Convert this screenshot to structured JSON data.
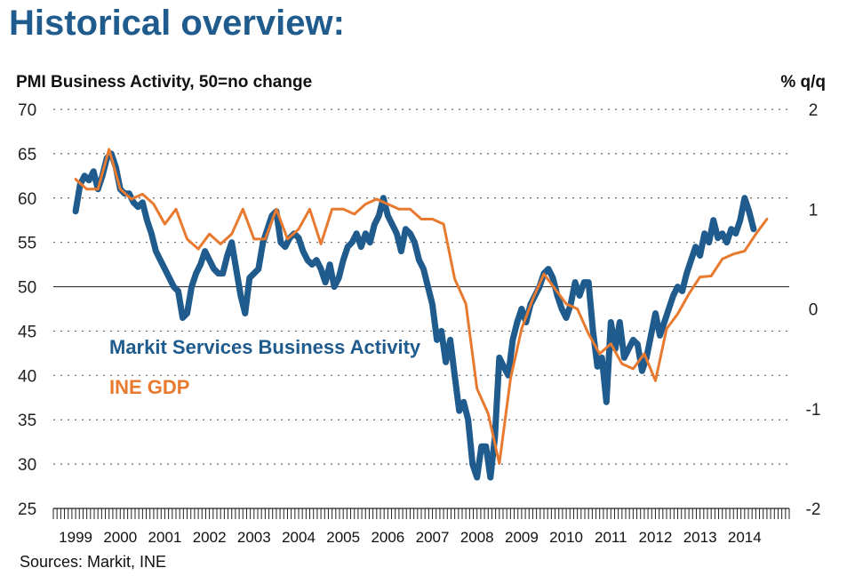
{
  "title": "Historical overview:",
  "source_text": "Sources: Markit, INE",
  "chart_data": {
    "type": "line",
    "ylabel_left": "PMI Business Activity, 50=no change",
    "ylabel_right": "% q/q",
    "ylim_left": [
      25,
      70
    ],
    "yticks_left": [
      25,
      30,
      35,
      40,
      45,
      50,
      55,
      60,
      65,
      70
    ],
    "ylim_right": [
      -2,
      2
    ],
    "yticks_right": [
      -2,
      -1,
      0,
      1,
      2
    ],
    "reference_line": 50,
    "grid": "dotted horizontal",
    "xlim": [
      1999.0,
      2015.5
    ],
    "x_tick_labels": [
      "1999",
      "2000",
      "2001",
      "2002",
      "2003",
      "2004",
      "2005",
      "2006",
      "2007",
      "2008",
      "2009",
      "2010",
      "2011",
      "2012",
      "2013",
      "2014"
    ],
    "annotations": [
      {
        "text": "Markit Services Business Activity",
        "color": "#1f5b8c"
      },
      {
        "text": "INE GDP",
        "color": "#e87a30"
      }
    ],
    "series": [
      {
        "name": "Markit Services Business Activity",
        "axis": "left",
        "color": "#1f5b8c",
        "points": [
          [
            1999.5,
            58.5
          ],
          [
            1999.6,
            61.5
          ],
          [
            1999.7,
            62.5
          ],
          [
            1999.8,
            62
          ],
          [
            1999.9,
            63
          ],
          [
            2000.0,
            61
          ],
          [
            2000.1,
            62.5
          ],
          [
            2000.2,
            64.5
          ],
          [
            2000.3,
            65
          ],
          [
            2000.4,
            63.5
          ],
          [
            2000.5,
            61
          ],
          [
            2000.6,
            60.5
          ],
          [
            2000.7,
            60.5
          ],
          [
            2000.8,
            59.5
          ],
          [
            2000.9,
            59
          ],
          [
            2001.0,
            59.5
          ],
          [
            2001.1,
            57.5
          ],
          [
            2001.2,
            56
          ],
          [
            2001.3,
            54
          ],
          [
            2001.4,
            53
          ],
          [
            2001.5,
            52
          ],
          [
            2001.6,
            51
          ],
          [
            2001.7,
            50
          ],
          [
            2001.8,
            49.5
          ],
          [
            2001.9,
            46.5
          ],
          [
            2002.0,
            47
          ],
          [
            2002.1,
            50
          ],
          [
            2002.2,
            51.5
          ],
          [
            2002.3,
            52.5
          ],
          [
            2002.4,
            54
          ],
          [
            2002.5,
            53
          ],
          [
            2002.6,
            52
          ],
          [
            2002.7,
            51.5
          ],
          [
            2002.8,
            51.5
          ],
          [
            2002.9,
            53.5
          ],
          [
            2003.0,
            55
          ],
          [
            2003.1,
            52
          ],
          [
            2003.2,
            49
          ],
          [
            2003.3,
            47
          ],
          [
            2003.4,
            51
          ],
          [
            2003.5,
            51.5
          ],
          [
            2003.6,
            52
          ],
          [
            2003.7,
            55
          ],
          [
            2003.8,
            56.5
          ],
          [
            2003.9,
            58
          ],
          [
            2004.0,
            58.5
          ],
          [
            2004.1,
            55
          ],
          [
            2004.2,
            54.5
          ],
          [
            2004.3,
            55.5
          ],
          [
            2004.4,
            56
          ],
          [
            2004.5,
            55.5
          ],
          [
            2004.6,
            54
          ],
          [
            2004.7,
            53
          ],
          [
            2004.8,
            52.5
          ],
          [
            2004.9,
            53
          ],
          [
            2005.0,
            52
          ],
          [
            2005.1,
            50.5
          ],
          [
            2005.2,
            52.5
          ],
          [
            2005.3,
            50
          ],
          [
            2005.4,
            51
          ],
          [
            2005.5,
            53
          ],
          [
            2005.6,
            54.5
          ],
          [
            2005.7,
            55
          ],
          [
            2005.8,
            56
          ],
          [
            2005.9,
            54.5
          ],
          [
            2006.0,
            56
          ],
          [
            2006.1,
            55
          ],
          [
            2006.2,
            57
          ],
          [
            2006.3,
            58
          ],
          [
            2006.4,
            60
          ],
          [
            2006.5,
            58
          ],
          [
            2006.6,
            57
          ],
          [
            2006.7,
            56
          ],
          [
            2006.8,
            54
          ],
          [
            2006.9,
            56.5
          ],
          [
            2007.0,
            56
          ],
          [
            2007.1,
            55
          ],
          [
            2007.2,
            53
          ],
          [
            2007.3,
            52
          ],
          [
            2007.4,
            50
          ],
          [
            2007.5,
            48
          ],
          [
            2007.6,
            44
          ],
          [
            2007.7,
            45
          ],
          [
            2007.8,
            41.5
          ],
          [
            2007.9,
            44
          ],
          [
            2008.0,
            40
          ],
          [
            2008.1,
            36
          ],
          [
            2008.2,
            37
          ],
          [
            2008.3,
            35
          ],
          [
            2008.4,
            30
          ],
          [
            2008.5,
            28.5
          ],
          [
            2008.6,
            32
          ],
          [
            2008.7,
            32
          ],
          [
            2008.8,
            28.5
          ],
          [
            2008.9,
            33
          ],
          [
            2009.0,
            42
          ],
          [
            2009.1,
            41
          ],
          [
            2009.2,
            40
          ],
          [
            2009.3,
            44
          ],
          [
            2009.4,
            46
          ],
          [
            2009.5,
            47.5
          ],
          [
            2009.6,
            46
          ],
          [
            2009.7,
            48
          ],
          [
            2009.8,
            49
          ],
          [
            2009.9,
            50
          ],
          [
            2010.0,
            51.5
          ],
          [
            2010.1,
            52
          ],
          [
            2010.2,
            51
          ],
          [
            2010.3,
            49
          ],
          [
            2010.4,
            47.5
          ],
          [
            2010.5,
            46.5
          ],
          [
            2010.6,
            48
          ],
          [
            2010.7,
            50.5
          ],
          [
            2010.8,
            49
          ],
          [
            2010.9,
            50.5
          ],
          [
            2011.0,
            50.5
          ],
          [
            2011.1,
            45
          ],
          [
            2011.2,
            41
          ],
          [
            2011.3,
            42
          ],
          [
            2011.4,
            37
          ],
          [
            2011.5,
            46
          ],
          [
            2011.6,
            43
          ],
          [
            2011.7,
            46
          ],
          [
            2011.8,
            42
          ],
          [
            2011.9,
            43
          ],
          [
            2012.0,
            44
          ],
          [
            2012.1,
            43.5
          ],
          [
            2012.2,
            40.5
          ],
          [
            2012.3,
            42
          ],
          [
            2012.4,
            44.5
          ],
          [
            2012.5,
            47
          ],
          [
            2012.6,
            44.5
          ],
          [
            2012.7,
            46
          ],
          [
            2012.8,
            47.5
          ],
          [
            2012.9,
            49
          ],
          [
            2013.0,
            50
          ],
          [
            2013.1,
            49.5
          ],
          [
            2013.2,
            51.5
          ],
          [
            2013.3,
            53
          ],
          [
            2013.4,
            54.5
          ],
          [
            2013.5,
            53.5
          ],
          [
            2013.6,
            56
          ],
          [
            2013.7,
            55
          ],
          [
            2013.8,
            57.5
          ],
          [
            2013.9,
            55.5
          ],
          [
            2014.0,
            56
          ],
          [
            2014.1,
            55
          ],
          [
            2014.2,
            56.5
          ],
          [
            2014.3,
            56
          ],
          [
            2014.4,
            57.5
          ],
          [
            2014.5,
            60
          ],
          [
            2014.6,
            58.5
          ],
          [
            2014.7,
            56.5
          ]
        ]
      },
      {
        "name": "INE GDP",
        "axis": "right",
        "color": "#e87a30",
        "points": [
          [
            1999.5,
            1.3
          ],
          [
            1999.75,
            1.2
          ],
          [
            2000.0,
            1.2
          ],
          [
            2000.25,
            1.6
          ],
          [
            2000.5,
            1.2
          ],
          [
            2000.75,
            1.1
          ],
          [
            2001.0,
            1.15
          ],
          [
            2001.25,
            1.05
          ],
          [
            2001.5,
            0.85
          ],
          [
            2001.75,
            1.0
          ],
          [
            2002.0,
            0.7
          ],
          [
            2002.25,
            0.6
          ],
          [
            2002.5,
            0.75
          ],
          [
            2002.75,
            0.65
          ],
          [
            2003.0,
            0.75
          ],
          [
            2003.25,
            1.0
          ],
          [
            2003.5,
            0.7
          ],
          [
            2003.75,
            0.7
          ],
          [
            2004.0,
            1.0
          ],
          [
            2004.25,
            0.7
          ],
          [
            2004.5,
            0.8
          ],
          [
            2004.75,
            1.0
          ],
          [
            2005.0,
            0.65
          ],
          [
            2005.25,
            1.0
          ],
          [
            2005.5,
            1.0
          ],
          [
            2005.75,
            0.95
          ],
          [
            2006.0,
            1.05
          ],
          [
            2006.25,
            1.1
          ],
          [
            2006.5,
            1.05
          ],
          [
            2006.75,
            1.0
          ],
          [
            2007.0,
            1.0
          ],
          [
            2007.25,
            0.9
          ],
          [
            2007.5,
            0.9
          ],
          [
            2007.75,
            0.85
          ],
          [
            2008.0,
            0.3
          ],
          [
            2008.25,
            0.05
          ],
          [
            2008.5,
            -0.8
          ],
          [
            2008.75,
            -1.05
          ],
          [
            2009.0,
            -1.55
          ],
          [
            2009.25,
            -0.7
          ],
          [
            2009.5,
            -0.2
          ],
          [
            2009.75,
            0.1
          ],
          [
            2010.0,
            0.35
          ],
          [
            2010.25,
            0.2
          ],
          [
            2010.5,
            0.05
          ],
          [
            2010.75,
            0.0
          ],
          [
            2011.0,
            -0.25
          ],
          [
            2011.25,
            -0.45
          ],
          [
            2011.5,
            -0.35
          ],
          [
            2011.75,
            -0.55
          ],
          [
            2012.0,
            -0.6
          ],
          [
            2012.25,
            -0.45
          ],
          [
            2012.5,
            -0.72
          ],
          [
            2012.75,
            -0.2
          ],
          [
            2013.0,
            -0.05
          ],
          [
            2013.25,
            0.15
          ],
          [
            2013.5,
            0.32
          ],
          [
            2013.75,
            0.33
          ],
          [
            2014.0,
            0.5
          ],
          [
            2014.25,
            0.55
          ],
          [
            2014.5,
            0.58
          ],
          [
            2014.75,
            0.75
          ],
          [
            2015.0,
            0.9
          ]
        ]
      }
    ]
  }
}
